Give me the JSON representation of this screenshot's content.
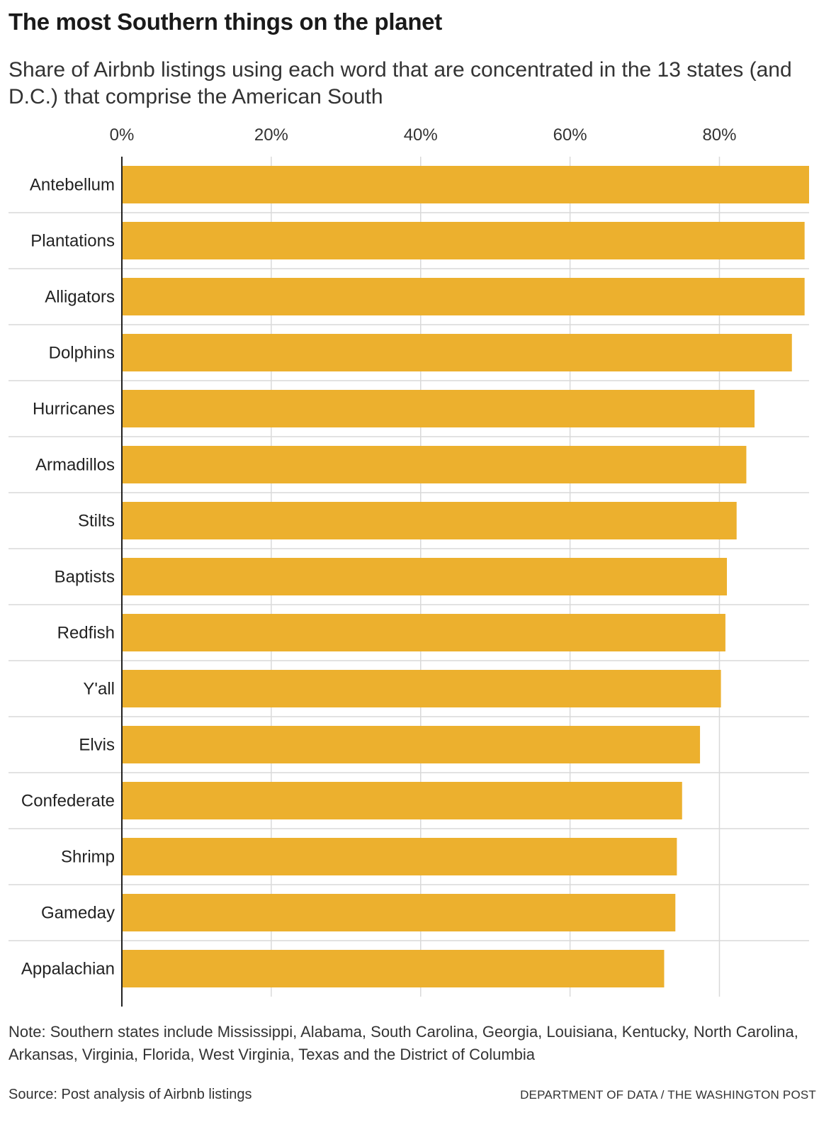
{
  "title": "The most Southern things on the planet",
  "subtitle": "Share of Airbnb listings using each word that are concentrated in the 13 states (and D.C.) that comprise the American South",
  "note": "Note: Southern states include Mississippi, Alabama, South Carolina, Georgia, Louisiana, Kentucky, North Carolina, Arkansas, Virginia, Florida, West Virginia, Texas and the District of Columbia",
  "source": "Source: Post analysis of Airbnb listings",
  "credit": "DEPARTMENT OF DATA / THE WASHINGTON POST",
  "colors": {
    "bar": "#ecb02e",
    "grid": "#d9d9d9",
    "axis": "#222222"
  },
  "chart_data": {
    "type": "bar",
    "orientation": "horizontal",
    "title": "The most Southern things on the planet",
    "xlabel": "",
    "ylabel": "",
    "xlim": [
      0,
      92
    ],
    "x_ticks": [
      0,
      20,
      40,
      60,
      80
    ],
    "x_tick_labels": [
      "0%",
      "20%",
      "40%",
      "60%",
      "80%"
    ],
    "x_axis_position": "top",
    "grid": true,
    "legend": "none",
    "categories": [
      "Antebellum",
      "Plantations",
      "Alligators",
      "Dolphins",
      "Hurricanes",
      "Armadillos",
      "Stilts",
      "Baptists",
      "Redfish",
      "Y'all",
      "Elvis",
      "Confederate",
      "Shrimp",
      "Gameday",
      "Appalachian"
    ],
    "values": [
      92.0,
      91.4,
      91.4,
      89.7,
      84.7,
      83.6,
      82.3,
      81.0,
      80.8,
      80.2,
      77.4,
      75.0,
      74.3,
      74.1,
      72.6
    ]
  }
}
